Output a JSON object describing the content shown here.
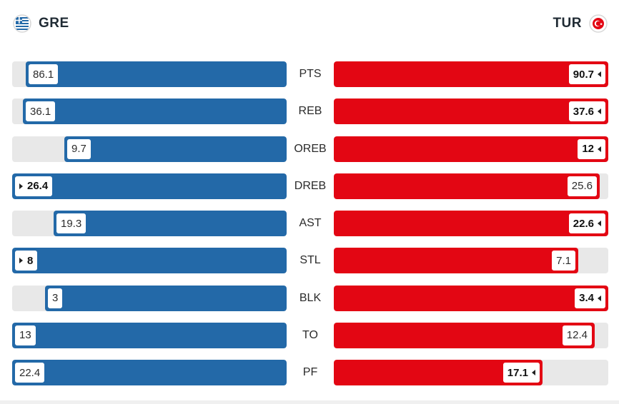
{
  "home": {
    "code": "GRE",
    "flag_icon": "greece-flag-icon",
    "color": "#2369a8"
  },
  "away": {
    "code": "TUR",
    "flag_icon": "turkey-flag-icon",
    "color": "#e30613"
  },
  "stats": [
    {
      "label": "PTS",
      "home": "86.1",
      "away": "90.7",
      "home_frac": 0.95,
      "away_frac": 1.0,
      "leader": "away"
    },
    {
      "label": "REB",
      "home": "36.1",
      "away": "37.6",
      "home_frac": 0.96,
      "away_frac": 1.0,
      "leader": "away"
    },
    {
      "label": "OREB",
      "home": "9.7",
      "away": "12",
      "home_frac": 0.81,
      "away_frac": 1.0,
      "leader": "away"
    },
    {
      "label": "DREB",
      "home": "26.4",
      "away": "25.6",
      "home_frac": 1.0,
      "away_frac": 0.97,
      "leader": "home"
    },
    {
      "label": "AST",
      "home": "19.3",
      "away": "22.6",
      "home_frac": 0.85,
      "away_frac": 1.0,
      "leader": "away"
    },
    {
      "label": "STL",
      "home": "8",
      "away": "7.1",
      "home_frac": 1.0,
      "away_frac": 0.89,
      "leader": "home"
    },
    {
      "label": "BLK",
      "home": "3",
      "away": "3.4",
      "home_frac": 0.88,
      "away_frac": 1.0,
      "leader": "away"
    },
    {
      "label": "TO",
      "home": "13",
      "away": "12.4",
      "home_frac": 1.0,
      "away_frac": 0.95,
      "leader": "none"
    },
    {
      "label": "PF",
      "home": "22.4",
      "away": "17.1",
      "home_frac": 1.0,
      "away_frac": 0.76,
      "leader": "away"
    }
  ]
}
